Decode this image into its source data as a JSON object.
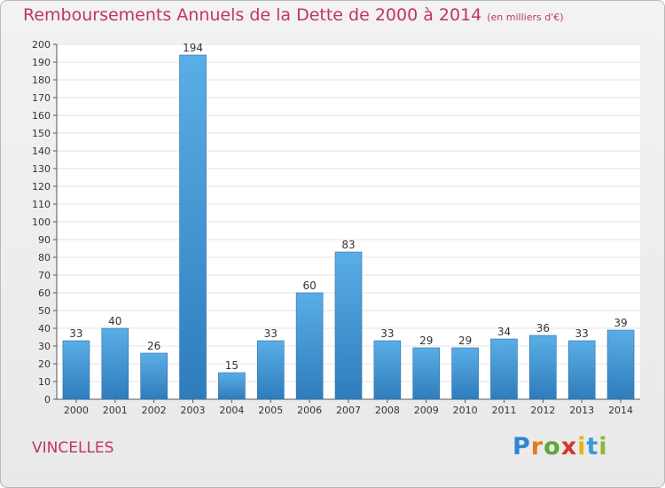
{
  "header": {
    "title": "Remboursements Annuels de la Dette de 2000 à 2014",
    "subtitle": "(en milliers d'€)"
  },
  "commune": "VINCELLES",
  "logo": {
    "letters": [
      "P",
      "r",
      "o",
      "x",
      "i",
      "t",
      "i"
    ],
    "colors": [
      "#2f86d1",
      "#e07b1e",
      "#59a83a",
      "#d6362f",
      "#e7b21d",
      "#3b9ad6",
      "#8bbb34"
    ]
  },
  "chart_data": {
    "type": "bar",
    "categories": [
      "2000",
      "2001",
      "2002",
      "2003",
      "2004",
      "2005",
      "2006",
      "2007",
      "2008",
      "2009",
      "2010",
      "2011",
      "2012",
      "2013",
      "2014"
    ],
    "values": [
      33,
      40,
      26,
      194,
      15,
      33,
      60,
      83,
      33,
      29,
      29,
      34,
      36,
      33,
      39
    ],
    "ylim": [
      0,
      200
    ],
    "yticks": [
      0,
      10,
      20,
      30,
      40,
      50,
      60,
      70,
      80,
      90,
      100,
      110,
      120,
      130,
      140,
      150,
      160,
      170,
      180,
      190,
      200
    ],
    "grid": true,
    "bar_color": "#4b9fdc"
  }
}
